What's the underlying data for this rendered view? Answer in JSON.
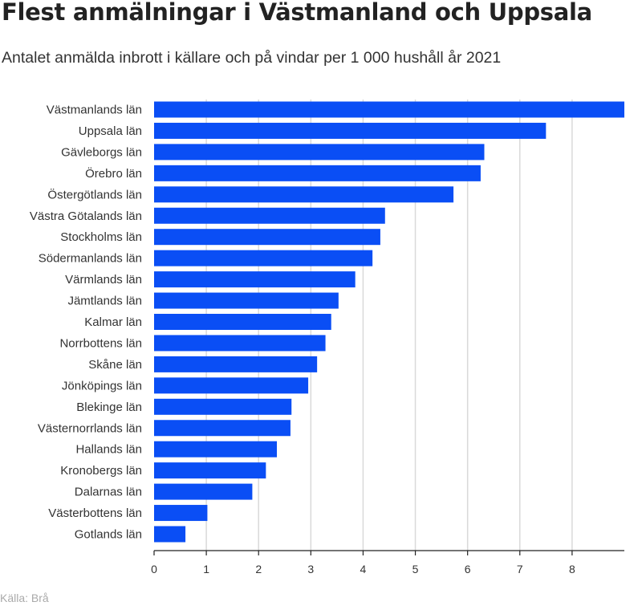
{
  "chart_data": {
    "type": "bar",
    "orientation": "horizontal",
    "title": "Flest anmälningar i Västmanland och Uppsala",
    "subtitle": "Antalet anmälda inbrott i källare och på vindar per 1 000 hushåll år 2021",
    "source": "Källa: Brå",
    "categories": [
      "Västmanlands län",
      "Uppsala län",
      "Gävleborgs län",
      "Örebro län",
      "Östergötlands län",
      "Västra Götalands län",
      "Stockholms län",
      "Södermanlands län",
      "Värmlands län",
      "Jämtlands län",
      "Kalmar län",
      "Norrbottens län",
      "Skåne län",
      "Jönköpings län",
      "Blekinge län",
      "Västernorrlands län",
      "Hallands län",
      "Kronobergs län",
      "Dalarnas län",
      "Västerbottens län",
      "Gotlands län"
    ],
    "values": [
      9.0,
      7.5,
      6.32,
      6.25,
      5.73,
      4.42,
      4.33,
      4.18,
      3.85,
      3.53,
      3.39,
      3.28,
      3.12,
      2.95,
      2.63,
      2.61,
      2.35,
      2.14,
      1.88,
      1.02,
      0.6
    ],
    "xlim": [
      0,
      9
    ],
    "xticks": [
      0,
      1,
      2,
      3,
      4,
      5,
      6,
      7,
      8
    ],
    "grid": true,
    "colors": {
      "bar": "#0a4ef5",
      "grid": "#d9d9d9",
      "axis": "#222222"
    }
  }
}
